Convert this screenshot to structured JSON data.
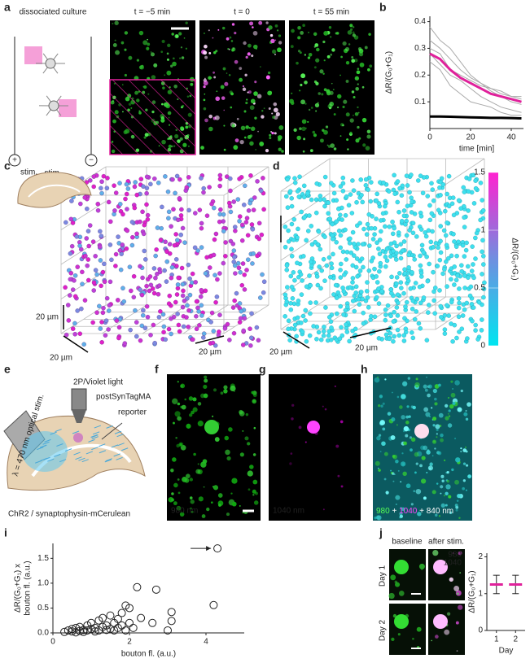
{
  "panel_labels": [
    "a",
    "b",
    "c",
    "d",
    "e",
    "f",
    "g",
    "h",
    "i",
    "j"
  ],
  "a": {
    "title": "dissociated culture",
    "stim": "stim.",
    "plus": "+",
    "minus": "−",
    "times": [
      "t = −5 min",
      "t = 0",
      "t = 55 min"
    ]
  },
  "b": {
    "type": "line",
    "xlabel": "time [min]",
    "ylabel": "ΔR/(G₀+G₁)",
    "xlim": [
      0,
      46
    ],
    "xticks": [
      0,
      20,
      40
    ],
    "ylim": [
      0,
      0.42
    ],
    "yticks": [
      0.1,
      0.2,
      0.3,
      0.4
    ],
    "x": [
      0,
      5,
      10,
      15,
      20,
      25,
      30,
      35,
      40,
      45
    ],
    "series": [
      {
        "color": "#aaaaaa",
        "values": [
          0.38,
          0.33,
          0.3,
          0.25,
          0.2,
          0.17,
          0.14,
          0.12,
          0.1,
          0.09
        ]
      },
      {
        "color": "#aaaaaa",
        "values": [
          0.3,
          0.28,
          0.22,
          0.2,
          0.18,
          0.16,
          0.15,
          0.13,
          0.12,
          0.11
        ]
      },
      {
        "color": "#aaaaaa",
        "values": [
          0.25,
          0.22,
          0.16,
          0.13,
          0.1,
          0.09,
          0.08,
          0.06,
          0.05,
          0.05
        ]
      },
      {
        "color": "#aaaaaa",
        "values": [
          0.33,
          0.3,
          0.26,
          0.22,
          0.19,
          0.17,
          0.15,
          0.14,
          0.12,
          0.12
        ]
      },
      {
        "color": "#aaaaaa",
        "values": [
          0.28,
          0.24,
          0.2,
          0.18,
          0.15,
          0.12,
          0.1,
          0.08,
          0.07,
          0.06
        ]
      },
      {
        "color": "#000000",
        "values": [
          0.045,
          0.045,
          0.044,
          0.043,
          0.042,
          0.041,
          0.04,
          0.04,
          0.039,
          0.038
        ]
      },
      {
        "color": "#e0219b",
        "values": [
          0.28,
          0.26,
          0.22,
          0.19,
          0.17,
          0.15,
          0.13,
          0.12,
          0.11,
          0.1
        ]
      }
    ]
  },
  "c": {
    "stim": "stim.",
    "scale": [
      "20 µm",
      "20 µm",
      "20 µm"
    ]
  },
  "d": {
    "scale": [
      "20 µm",
      "20 µm"
    ],
    "colorbar": {
      "label": "ΔR/(G₀+G₁)",
      "lim": [
        0,
        1.5
      ],
      "ticks": [
        0,
        0.5,
        1,
        1.5
      ]
    }
  },
  "e": {
    "light": "2P/Violet light",
    "tag": "postSynTagMA",
    "reporter": "reporter",
    "optical": "λ = 470 nm optical stim.",
    "chr2": "ChR2 / synaptophysin-mCerulean"
  },
  "f": "980 nm",
  "g": "1040 nm",
  "h": [
    "980",
    "+",
    "1040",
    "+ 840 nm"
  ],
  "i": {
    "type": "scatter",
    "xlabel": "bouton fl. (a.u.)",
    "ylabel": [
      "ΔR/(G₀+G₁) x",
      "bouton fl. (a.u.)"
    ],
    "xlim": [
      0,
      5
    ],
    "xticks": [
      0,
      2,
      4
    ],
    "ylim": [
      0,
      1.8
    ],
    "yticks": [
      {
        "value": 0,
        "label": "0.0"
      },
      {
        "value": 0.5,
        "label": "0.5"
      },
      {
        "value": 1,
        "label": "1.0"
      },
      {
        "value": 1.5,
        "label": "1.5"
      }
    ],
    "x": [
      0.3,
      0.4,
      0.5,
      0.5,
      0.6,
      0.6,
      0.7,
      0.7,
      0.8,
      0.8,
      0.9,
      0.9,
      1.0,
      1.0,
      1.1,
      1.1,
      1.2,
      1.2,
      1.3,
      1.3,
      1.4,
      1.4,
      1.5,
      1.5,
      1.6,
      1.6,
      1.7,
      1.7,
      1.8,
      1.8,
      1.9,
      1.9,
      2.0,
      2.0,
      2.1,
      2.2,
      2.3,
      2.6,
      2.7,
      3.0,
      3.1,
      3.1,
      4.2,
      4.3
    ],
    "y": [
      0.02,
      0.05,
      0.03,
      0.08,
      0.01,
      0.1,
      0.04,
      0.12,
      0.06,
      0.02,
      0.15,
      0.05,
      0.08,
      0.2,
      0.03,
      0.1,
      0.25,
      0.05,
      0.12,
      0.3,
      0.06,
      0.15,
      0.08,
      0.35,
      0.2,
      0.05,
      0.1,
      0.28,
      0.15,
      0.4,
      0.05,
      0.55,
      0.2,
      0.5,
      0.1,
      0.92,
      0.3,
      0.2,
      0.87,
      0.05,
      0.24,
      0.42,
      0.56,
      1.7
    ]
  },
  "j": {
    "cols": [
      "baseline",
      "after stim."
    ],
    "rows": [
      "Day 1",
      "Day 2"
    ],
    "channels": [
      "980",
      "1040"
    ],
    "chart": {
      "type": "errorbar",
      "categories": [
        "1",
        "2"
      ],
      "values": [
        1.25,
        1.25
      ],
      "errors": [
        0.25,
        0.25
      ],
      "color": "#e0219b",
      "xlabel": "Day",
      "ylabel": "ΔR/(G₀+G₁)",
      "ylim": [
        0,
        2.1
      ],
      "yticks": [
        0,
        1,
        2
      ]
    }
  }
}
